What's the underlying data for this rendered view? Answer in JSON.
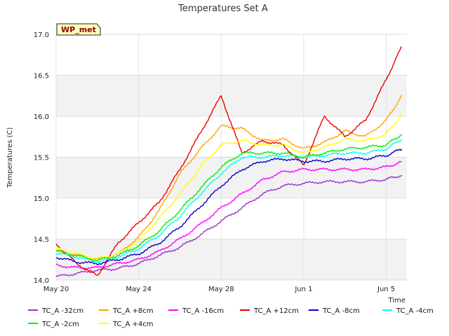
{
  "chart_data": {
    "type": "line",
    "title": "Temperatures Set A",
    "xlabel": "Time",
    "ylabel": "Temperatures (C)",
    "badge": "WP_met",
    "ylim": [
      14.0,
      17.0
    ],
    "xlim": [
      "2023-05-20",
      "2023-06-06"
    ],
    "yticks": [
      "14.0",
      "14.5",
      "15.0",
      "15.5",
      "16.0",
      "16.5",
      "17.0"
    ],
    "xticks": [
      {
        "date": "2023-05-20",
        "label": "May 20"
      },
      {
        "date": "2023-05-24",
        "label": "May 24"
      },
      {
        "date": "2023-05-28",
        "label": "May 28"
      },
      {
        "date": "2023-06-01",
        "label": "Jun 1"
      },
      {
        "date": "2023-06-05",
        "label": "Jun 5"
      }
    ],
    "grid": true,
    "legend_position": "bottom",
    "series": [
      {
        "name": "TC_A -32cm",
        "color": "#9932cc",
        "x": [
          "2023-05-20",
          "2023-05-21",
          "2023-05-22",
          "2023-05-23",
          "2023-05-24",
          "2023-05-25",
          "2023-05-26",
          "2023-05-27",
          "2023-05-28",
          "2023-05-29",
          "2023-05-30",
          "2023-05-31",
          "2023-06-01",
          "2023-06-02",
          "2023-06-03",
          "2023-06-04",
          "2023-06-05",
          "2023-06-05T18:00"
        ],
        "y": [
          14.04,
          14.08,
          14.12,
          14.14,
          14.2,
          14.3,
          14.4,
          14.55,
          14.72,
          14.88,
          15.05,
          15.15,
          15.18,
          15.2,
          15.2,
          15.2,
          15.23,
          15.28
        ]
      },
      {
        "name": "TC_A +8cm",
        "color": "#ffa500",
        "x": [
          "2023-05-20",
          "2023-05-21",
          "2023-05-22",
          "2023-05-23",
          "2023-05-24",
          "2023-05-25",
          "2023-05-26",
          "2023-05-27",
          "2023-05-28",
          "2023-05-29",
          "2023-05-30",
          "2023-05-31",
          "2023-06-01",
          "2023-06-02",
          "2023-06-03",
          "2023-06-04",
          "2023-06-05",
          "2023-06-05T18:00"
        ],
        "y": [
          14.35,
          14.3,
          14.25,
          14.32,
          14.52,
          14.85,
          15.3,
          15.6,
          15.88,
          15.85,
          15.7,
          15.72,
          15.6,
          15.68,
          15.82,
          15.75,
          15.95,
          16.25
        ]
      },
      {
        "name": "TC_A -16cm",
        "color": "#ff00ff",
        "x": [
          "2023-05-20",
          "2023-05-21",
          "2023-05-22",
          "2023-05-23",
          "2023-05-24",
          "2023-05-25",
          "2023-05-26",
          "2023-05-27",
          "2023-05-28",
          "2023-05-29",
          "2023-05-30",
          "2023-05-31",
          "2023-06-01",
          "2023-06-02",
          "2023-06-03",
          "2023-06-04",
          "2023-06-05",
          "2023-06-05T18:00"
        ],
        "y": [
          14.18,
          14.15,
          14.15,
          14.2,
          14.25,
          14.35,
          14.5,
          14.68,
          14.88,
          15.05,
          15.22,
          15.32,
          15.35,
          15.35,
          15.35,
          15.35,
          15.38,
          15.44
        ]
      },
      {
        "name": "TC_A +12cm",
        "color": "#ee0000",
        "x": [
          "2023-05-20",
          "2023-05-21",
          "2023-05-22",
          "2023-05-23",
          "2023-05-24",
          "2023-05-25",
          "2023-05-26",
          "2023-05-27",
          "2023-05-28",
          "2023-05-29",
          "2023-05-30",
          "2023-05-31",
          "2023-06-01",
          "2023-06-02",
          "2023-06-03",
          "2023-06-04",
          "2023-06-05",
          "2023-06-05T18:00"
        ],
        "y": [
          14.44,
          14.2,
          14.05,
          14.45,
          14.7,
          14.95,
          15.35,
          15.8,
          16.25,
          15.55,
          15.7,
          15.65,
          15.4,
          16.0,
          15.75,
          15.95,
          16.45,
          16.85
        ]
      },
      {
        "name": "TC_A -8cm",
        "color": "#0000cd",
        "x": [
          "2023-05-20",
          "2023-05-21",
          "2023-05-22",
          "2023-05-23",
          "2023-05-24",
          "2023-05-25",
          "2023-05-26",
          "2023-05-27",
          "2023-05-28",
          "2023-05-29",
          "2023-05-30",
          "2023-05-31",
          "2023-06-01",
          "2023-06-02",
          "2023-06-03",
          "2023-06-04",
          "2023-06-05",
          "2023-06-05T18:00"
        ],
        "y": [
          14.28,
          14.22,
          14.2,
          14.25,
          14.32,
          14.45,
          14.65,
          14.9,
          15.15,
          15.35,
          15.45,
          15.48,
          15.45,
          15.45,
          15.48,
          15.48,
          15.52,
          15.6
        ]
      },
      {
        "name": "TC_A -4cm",
        "color": "#00ffff",
        "x": [
          "2023-05-20",
          "2023-05-21",
          "2023-05-22",
          "2023-05-23",
          "2023-05-24",
          "2023-05-25",
          "2023-05-26",
          "2023-05-27",
          "2023-05-28",
          "2023-05-29",
          "2023-05-30",
          "2023-05-31",
          "2023-06-01",
          "2023-06-02",
          "2023-06-03",
          "2023-06-04",
          "2023-06-05",
          "2023-06-05T18:00"
        ],
        "y": [
          14.33,
          14.28,
          14.22,
          14.28,
          14.38,
          14.55,
          14.78,
          15.05,
          15.3,
          15.5,
          15.5,
          15.52,
          15.5,
          15.52,
          15.55,
          15.55,
          15.6,
          15.72
        ]
      },
      {
        "name": "TC_A -2cm",
        "color": "#00ee00",
        "x": [
          "2023-05-20",
          "2023-05-21",
          "2023-05-22",
          "2023-05-23",
          "2023-05-24",
          "2023-05-25",
          "2023-05-26",
          "2023-05-27",
          "2023-05-28",
          "2023-05-29",
          "2023-05-30",
          "2023-05-31",
          "2023-06-01",
          "2023-06-02",
          "2023-06-03",
          "2023-06-04",
          "2023-06-05",
          "2023-06-05T18:00"
        ],
        "y": [
          14.36,
          14.3,
          14.24,
          14.3,
          14.42,
          14.6,
          14.85,
          15.12,
          15.38,
          15.55,
          15.55,
          15.55,
          15.5,
          15.55,
          15.6,
          15.62,
          15.65,
          15.78
        ]
      },
      {
        "name": "TC_A +4cm",
        "color": "#ffff00",
        "x": [
          "2023-05-20",
          "2023-05-21",
          "2023-05-22",
          "2023-05-23",
          "2023-05-24",
          "2023-05-25",
          "2023-05-26",
          "2023-05-27",
          "2023-05-28",
          "2023-05-29",
          "2023-05-30",
          "2023-05-31",
          "2023-06-01",
          "2023-06-02",
          "2023-06-03",
          "2023-06-04",
          "2023-06-05",
          "2023-06-05T18:00"
        ],
        "y": [
          14.38,
          14.32,
          14.26,
          14.32,
          14.48,
          14.75,
          15.05,
          15.38,
          15.65,
          15.7,
          15.65,
          15.65,
          15.55,
          15.62,
          15.72,
          15.7,
          15.78,
          16.02
        ]
      }
    ]
  }
}
